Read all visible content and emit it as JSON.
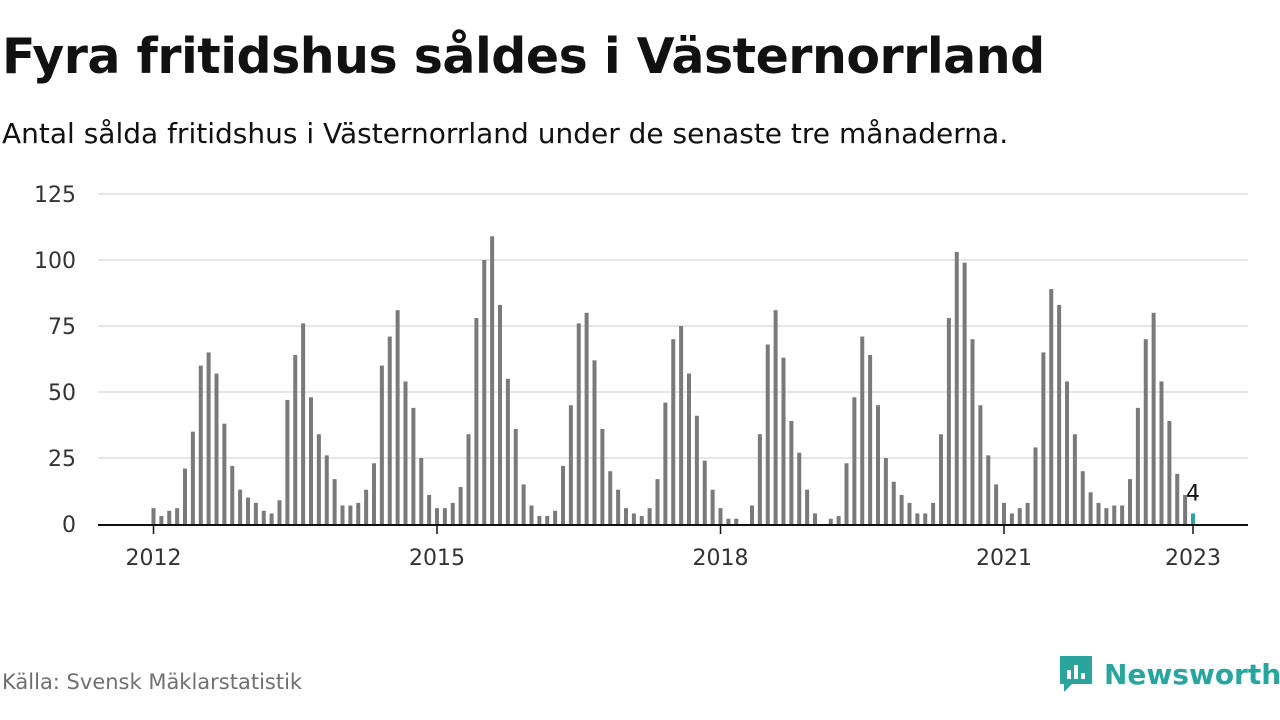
{
  "header": {
    "title": "Fyra fritidshus såldes i Västernorrland",
    "subtitle": "Antal sålda fritidshus i Västernorrland under de senaste tre månaderna."
  },
  "footer": {
    "source": "Källa: Svensk Mäklarstatistik",
    "brand": "Newsworthy",
    "brand_icon": "newsworthy-logo-icon"
  },
  "colors": {
    "bar": "#7a7a7a",
    "highlight": "#2aa49c",
    "grid": "#dddddd",
    "axis": "#111111",
    "brand": "#2aa49c"
  },
  "chart_data": {
    "type": "bar",
    "title": "Fyra fritidshus såldes i Västernorrland",
    "subtitle": "Antal sålda fritidshus i Västernorrland under de senaste tre månaderna.",
    "xlabel": "",
    "ylabel": "",
    "ylim": [
      0,
      125
    ],
    "yticks": [
      0,
      25,
      50,
      75,
      100,
      125
    ],
    "xticks": [
      "2012",
      "2015",
      "2018",
      "2021",
      "2023"
    ],
    "grid": true,
    "start": "2012-01",
    "frequency": "monthly",
    "values": [
      6,
      3,
      5,
      6,
      21,
      35,
      60,
      65,
      57,
      38,
      22,
      13,
      10,
      8,
      5,
      4,
      9,
      47,
      64,
      76,
      48,
      34,
      26,
      17,
      7,
      7,
      8,
      13,
      23,
      60,
      71,
      81,
      54,
      44,
      25,
      11,
      6,
      6,
      8,
      14,
      34,
      78,
      100,
      109,
      83,
      55,
      36,
      15,
      7,
      3,
      3,
      5,
      22,
      45,
      76,
      80,
      62,
      36,
      20,
      13,
      6,
      4,
      3,
      6,
      17,
      46,
      70,
      75,
      57,
      41,
      24,
      13,
      6,
      2,
      2,
      0,
      7,
      34,
      68,
      81,
      63,
      39,
      27,
      13,
      4,
      0,
      2,
      3,
      23,
      48,
      71,
      64,
      45,
      25,
      16,
      11,
      8,
      4,
      4,
      8,
      34,
      78,
      103,
      99,
      70,
      45,
      26,
      15,
      8,
      4,
      6,
      8,
      29,
      65,
      89,
      83,
      54,
      34,
      20,
      12,
      8,
      6,
      7,
      7,
      17,
      44,
      70,
      80,
      54,
      39,
      19,
      11,
      4
    ],
    "highlight_label": "4"
  }
}
